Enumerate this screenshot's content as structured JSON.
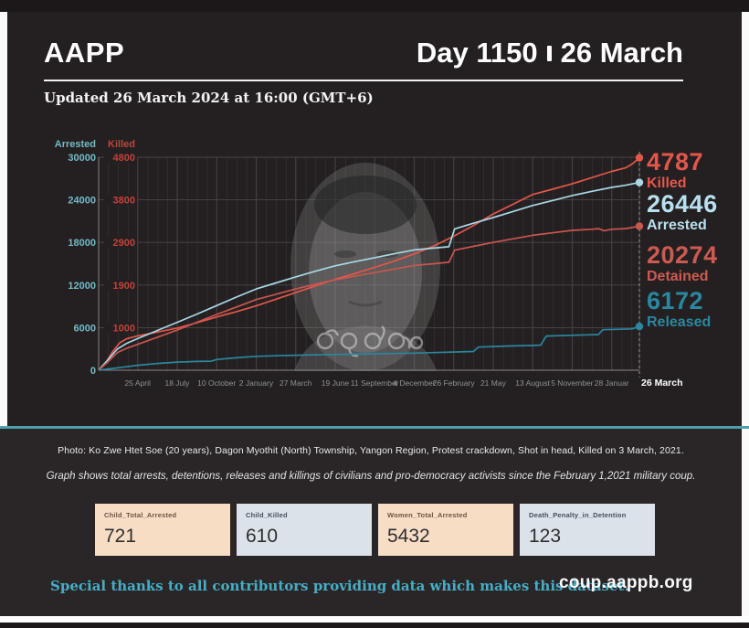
{
  "header": {
    "brand": "AAPP",
    "day_label": "Day 1150",
    "date_label": "26 March",
    "updated": "Updated 26 March 2024 at 16:00 (GMT+6)"
  },
  "chart_data": {
    "type": "line",
    "x_axis": {
      "unit": "days since 1 February 2021",
      "day_max": 1150,
      "tick_days": [
        83,
        167,
        251,
        335,
        419,
        503,
        587,
        671,
        755,
        839,
        923,
        1007,
        1091,
        1150
      ],
      "tick_labels": [
        "25 April",
        "18 July",
        "10 October",
        "2 January",
        "27 March",
        "19 June",
        "11 September",
        "4 December",
        "26 February",
        "21 May",
        "13 August",
        "5 November",
        "28 Januar",
        "26 March"
      ]
    },
    "y_axis_arrested": {
      "label": "Arrested",
      "color": "#74b9c8",
      "ticks": [
        30000,
        24000,
        18000,
        12000,
        6000,
        0
      ],
      "range": [
        0,
        30000
      ]
    },
    "y_axis_killed": {
      "label": "Killed",
      "color": "#c2423a",
      "ticks": [
        4800,
        3800,
        2900,
        1900,
        1000
      ],
      "range": [
        0,
        4800
      ]
    },
    "series": [
      {
        "name": "Killed",
        "axis": "killed",
        "color": "#e4564a",
        "final": 4787,
        "points": [
          [
            0,
            0
          ],
          [
            15,
            160
          ],
          [
            30,
            420
          ],
          [
            45,
            620
          ],
          [
            60,
            710
          ],
          [
            83,
            775
          ],
          [
            125,
            860
          ],
          [
            167,
            950
          ],
          [
            209,
            1070
          ],
          [
            251,
            1200
          ],
          [
            293,
            1320
          ],
          [
            335,
            1450
          ],
          [
            377,
            1600
          ],
          [
            419,
            1750
          ],
          [
            461,
            1900
          ],
          [
            503,
            2050
          ],
          [
            545,
            2180
          ],
          [
            587,
            2320
          ],
          [
            629,
            2460
          ],
          [
            671,
            2620
          ],
          [
            713,
            2800
          ],
          [
            755,
            3020
          ],
          [
            797,
            3260
          ],
          [
            839,
            3520
          ],
          [
            881,
            3740
          ],
          [
            923,
            3960
          ],
          [
            965,
            4080
          ],
          [
            1007,
            4200
          ],
          [
            1049,
            4340
          ],
          [
            1091,
            4480
          ],
          [
            1120,
            4560
          ],
          [
            1135,
            4650
          ],
          [
            1150,
            4787
          ]
        ]
      },
      {
        "name": "Arrested",
        "axis": "arrested",
        "color": "#a9d8e6",
        "final": 26446,
        "points": [
          [
            0,
            0
          ],
          [
            20,
            1500
          ],
          [
            40,
            3000
          ],
          [
            60,
            3800
          ],
          [
            83,
            4450
          ],
          [
            125,
            5600
          ],
          [
            167,
            6750
          ],
          [
            209,
            7900
          ],
          [
            251,
            9100
          ],
          [
            293,
            10300
          ],
          [
            335,
            11450
          ],
          [
            377,
            12300
          ],
          [
            419,
            13150
          ],
          [
            461,
            13950
          ],
          [
            503,
            14700
          ],
          [
            545,
            15300
          ],
          [
            587,
            15850
          ],
          [
            629,
            16400
          ],
          [
            671,
            16950
          ],
          [
            713,
            17200
          ],
          [
            745,
            17400
          ],
          [
            757,
            19900
          ],
          [
            797,
            20700
          ],
          [
            839,
            21500
          ],
          [
            881,
            22350
          ],
          [
            923,
            23200
          ],
          [
            965,
            23900
          ],
          [
            1007,
            24600
          ],
          [
            1049,
            25200
          ],
          [
            1091,
            25750
          ],
          [
            1120,
            26050
          ],
          [
            1150,
            26446
          ]
        ]
      },
      {
        "name": "Detained",
        "axis": "arrested",
        "color": "#c9564f",
        "final": 20274,
        "points": [
          [
            0,
            0
          ],
          [
            20,
            1200
          ],
          [
            40,
            2500
          ],
          [
            60,
            3100
          ],
          [
            83,
            3650
          ],
          [
            125,
            4650
          ],
          [
            167,
            5650
          ],
          [
            209,
            6750
          ],
          [
            251,
            7850
          ],
          [
            293,
            8900
          ],
          [
            335,
            9950
          ],
          [
            377,
            10700
          ],
          [
            419,
            11450
          ],
          [
            461,
            12100
          ],
          [
            503,
            12750
          ],
          [
            545,
            13250
          ],
          [
            587,
            13750
          ],
          [
            629,
            14250
          ],
          [
            671,
            14750
          ],
          [
            713,
            15000
          ],
          [
            745,
            15200
          ],
          [
            757,
            16900
          ],
          [
            797,
            17450
          ],
          [
            839,
            18000
          ],
          [
            881,
            18500
          ],
          [
            923,
            19000
          ],
          [
            965,
            19350
          ],
          [
            1007,
            19700
          ],
          [
            1049,
            19850
          ],
          [
            1063,
            19950
          ],
          [
            1075,
            19650
          ],
          [
            1091,
            19850
          ],
          [
            1120,
            19950
          ],
          [
            1150,
            20274
          ]
        ]
      },
      {
        "name": "Released",
        "axis": "arrested",
        "color": "#2a87a0",
        "final": 6172,
        "points": [
          [
            0,
            0
          ],
          [
            42,
            350
          ],
          [
            83,
            700
          ],
          [
            125,
            950
          ],
          [
            167,
            1150
          ],
          [
            209,
            1230
          ],
          [
            240,
            1270
          ],
          [
            252,
            1520
          ],
          [
            293,
            1750
          ],
          [
            335,
            1960
          ],
          [
            377,
            2040
          ],
          [
            419,
            2110
          ],
          [
            461,
            2160
          ],
          [
            503,
            2210
          ],
          [
            545,
            2260
          ],
          [
            587,
            2310
          ],
          [
            629,
            2360
          ],
          [
            671,
            2410
          ],
          [
            713,
            2480
          ],
          [
            755,
            2560
          ],
          [
            797,
            2640
          ],
          [
            808,
            3260
          ],
          [
            839,
            3330
          ],
          [
            881,
            3420
          ],
          [
            923,
            3490
          ],
          [
            940,
            3530
          ],
          [
            952,
            4820
          ],
          [
            1007,
            4920
          ],
          [
            1049,
            4990
          ],
          [
            1063,
            5020
          ],
          [
            1072,
            5700
          ],
          [
            1100,
            5760
          ],
          [
            1135,
            5820
          ],
          [
            1150,
            6172
          ]
        ]
      }
    ],
    "end_labels": [
      {
        "value": "4787",
        "label": "Killed",
        "color": "#e4564b"
      },
      {
        "value": "26446",
        "label": "Arrested",
        "color": "#b9e0ee"
      },
      {
        "value": "20274",
        "label": "Detained",
        "color": "#cd5a52"
      },
      {
        "value": "6172",
        "label": "Released",
        "color": "#2a87a0"
      }
    ],
    "grid": true,
    "legend_position": "right"
  },
  "watermark_text": "ဇွဲထက်စိုး",
  "photo_caption": "Photo: Ko Zwe Htet Soe (20 years), Dagon Myothit (North) Township, Yangon Region, Protest crackdown, Shot in head, Killed on 3 March, 2021.",
  "graph_note": "Graph shows total arrests, detentions, releases and killings of civilians and pro-democracy activists since the February 1,2021 military coup.",
  "stat_cards": [
    {
      "label": "Child_Total_Arrested",
      "value": "721",
      "style": "peach"
    },
    {
      "label": "Child_Killed",
      "value": "610",
      "style": "gray"
    },
    {
      "label": "Women_Total_Arrested",
      "value": "5432",
      "style": "peach"
    },
    {
      "label": "Death_Penalty_in_Detention",
      "value": "123",
      "style": "gray"
    }
  ],
  "footer": {
    "thanks": "Special thanks to all contributors providing data which makes this dataset.",
    "site": "coup.aappb.org"
  },
  "colors": {
    "background": "#242021",
    "lower_background": "#2a2526",
    "divider_teal": "#4f9fae",
    "frame_dark": "#1c1819"
  }
}
